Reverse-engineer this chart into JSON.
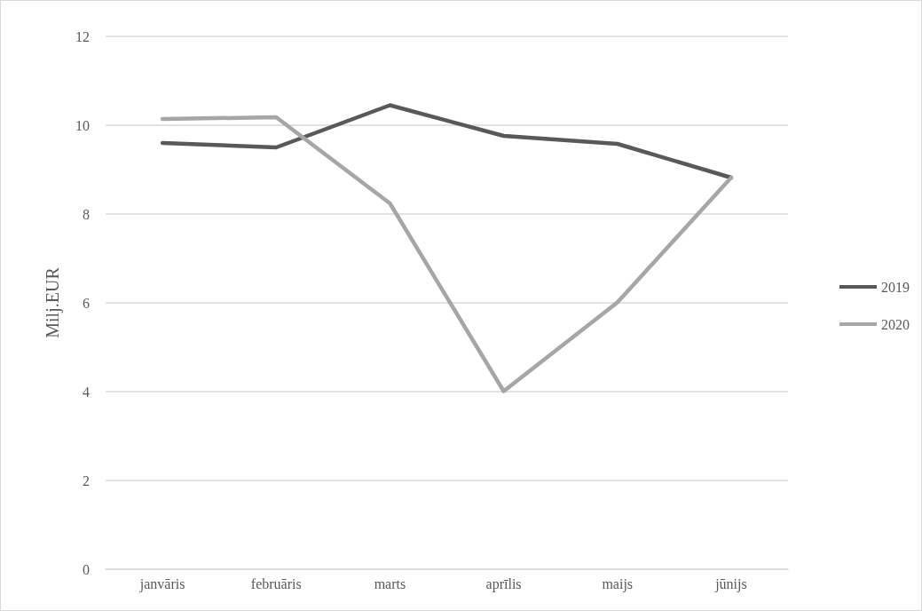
{
  "chart_data": {
    "type": "line",
    "ylabel": "Milj.EUR",
    "categories": [
      "janvāris",
      "februāris",
      "marts",
      "aprīlis",
      "maijs",
      "jūnijs"
    ],
    "series": [
      {
        "name": "2019",
        "color": "#595959",
        "values": [
          9.6,
          9.5,
          10.45,
          9.76,
          9.58,
          8.82
        ]
      },
      {
        "name": "2020",
        "color": "#a6a6a6",
        "values": [
          10.14,
          10.18,
          8.24,
          4.01,
          6.01,
          8.82
        ]
      }
    ],
    "ylim": [
      0,
      12
    ],
    "yticks": [
      0,
      2,
      4,
      6,
      8,
      10,
      12
    ],
    "grid": "y",
    "legend": "right",
    "marker": "none",
    "line_style": "solid"
  }
}
